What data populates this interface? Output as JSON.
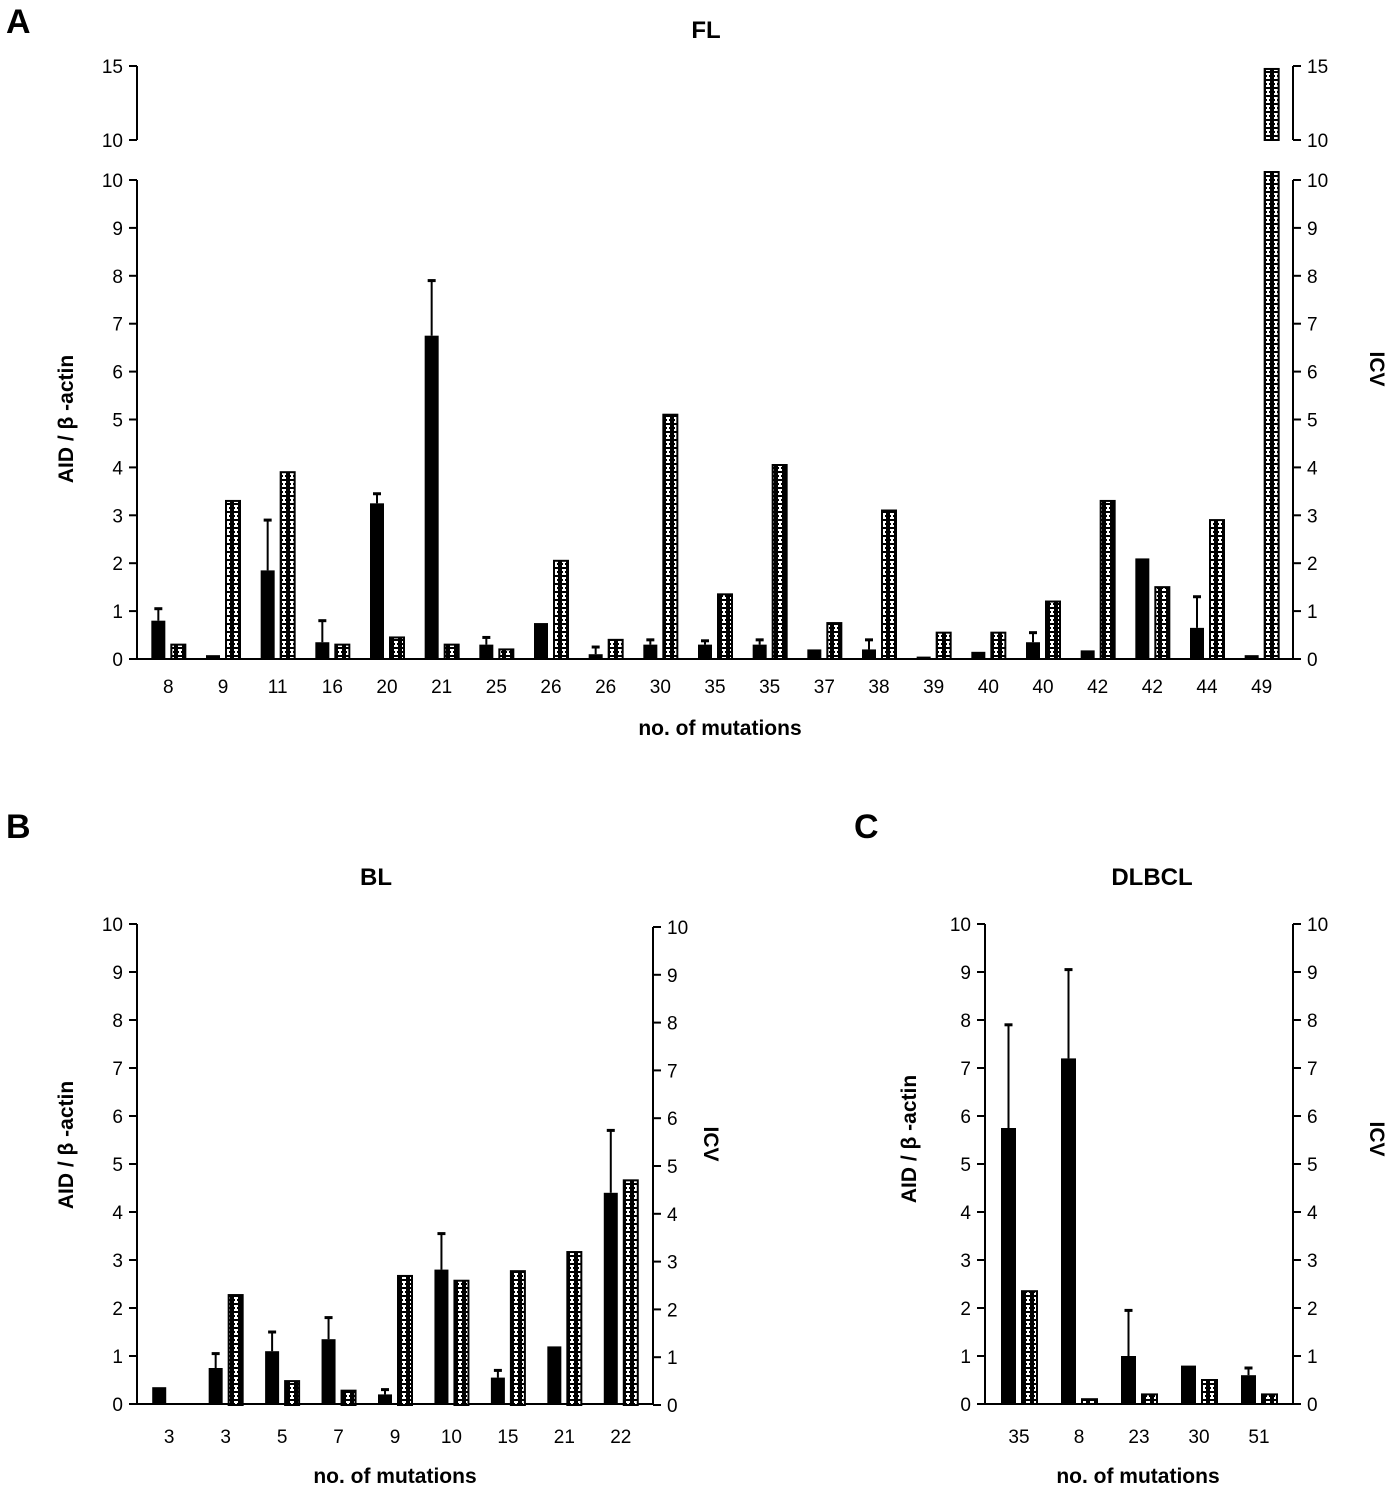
{
  "colors": {
    "aid_bar": "#000000",
    "icv_bar_fill": "#ffffff",
    "icv_bar_pattern": "#000000",
    "axis": "#000000"
  },
  "chart_data": [
    {
      "panel": "A",
      "type": "bar",
      "title": "FL",
      "xlabel": "no. of mutations",
      "ylabel_left": "AID / β -actin",
      "ylabel_right": "ICV",
      "ylim": [
        0,
        15
      ],
      "axis_break": [
        10,
        10
      ],
      "yticks_lower": [
        "0",
        "1",
        "2",
        "3",
        "4",
        "5",
        "6",
        "7",
        "8",
        "9",
        "10"
      ],
      "yticks_upper": [
        "10",
        "15"
      ],
      "categories": [
        "8",
        "9",
        "11",
        "16",
        "20",
        "21",
        "25",
        "26",
        "26",
        "30",
        "35",
        "35",
        "37",
        "38",
        "39",
        "40",
        "40",
        "42",
        "42",
        "44",
        "49"
      ],
      "series": [
        {
          "name": "AID / β-actin",
          "style": "solid-black",
          "axis": "left",
          "values": [
            0.8,
            0.08,
            1.85,
            0.35,
            3.25,
            6.75,
            0.3,
            0.75,
            0.1,
            0.3,
            0.3,
            0.3,
            0.2,
            0.2,
            0.05,
            0.15,
            0.35,
            0.18,
            2.1,
            0.65,
            0.08
          ],
          "error_upper": [
            1.05,
            null,
            2.9,
            0.8,
            3.45,
            7.9,
            0.45,
            null,
            0.25,
            0.4,
            0.38,
            0.4,
            null,
            0.4,
            null,
            null,
            0.55,
            null,
            null,
            1.3,
            null
          ]
        },
        {
          "name": "ICV",
          "style": "dotted-pattern",
          "axis": "right",
          "values": [
            0.3,
            3.3,
            3.9,
            0.3,
            0.45,
            0.3,
            0.2,
            2.05,
            0.4,
            5.1,
            1.35,
            4.05,
            0.75,
            3.1,
            0.55,
            0.55,
            1.2,
            3.3,
            1.5,
            2.9,
            14.8
          ]
        }
      ]
    },
    {
      "panel": "B",
      "type": "bar",
      "title": "BL",
      "xlabel": "no. of mutations",
      "ylabel_left": "AID / β -actin",
      "ylabel_right": "ICV",
      "ylim": [
        0,
        10
      ],
      "yticks": [
        "0",
        "1",
        "2",
        "3",
        "4",
        "5",
        "6",
        "7",
        "8",
        "9",
        "10"
      ],
      "categories": [
        "3",
        "3",
        "5",
        "7",
        "9",
        "10",
        "15",
        "21",
        "22"
      ],
      "series": [
        {
          "name": "AID / β-actin",
          "style": "solid-black",
          "axis": "left",
          "values": [
            0.35,
            0.75,
            1.1,
            1.35,
            0.2,
            2.8,
            0.55,
            1.2,
            4.4
          ],
          "error_upper": [
            null,
            1.05,
            1.5,
            1.8,
            0.3,
            3.55,
            0.7,
            null,
            5.7
          ]
        },
        {
          "name": "ICV",
          "style": "dotted-pattern",
          "axis": "right",
          "values": [
            0,
            2.3,
            0.5,
            0.3,
            2.7,
            2.6,
            2.8,
            3.2,
            4.7
          ]
        }
      ]
    },
    {
      "panel": "C",
      "type": "bar",
      "title": "DLBCL",
      "xlabel": "no. of mutations",
      "ylabel_left": "AID / β -actin",
      "ylabel_right": "ICV",
      "ylim": [
        0,
        10
      ],
      "yticks": [
        "0",
        "1",
        "2",
        "3",
        "4",
        "5",
        "6",
        "7",
        "8",
        "9",
        "10"
      ],
      "categories": [
        "35",
        "8",
        "23",
        "30",
        "51"
      ],
      "series": [
        {
          "name": "AID / β-actin",
          "style": "solid-black",
          "axis": "left",
          "values": [
            5.75,
            7.2,
            1.0,
            0.8,
            0.6
          ],
          "error_upper": [
            7.9,
            9.05,
            1.95,
            null,
            0.75
          ]
        },
        {
          "name": "ICV",
          "style": "dotted-pattern",
          "axis": "right",
          "values": [
            2.35,
            0.1,
            0.2,
            0.5,
            0.2
          ]
        }
      ]
    }
  ]
}
